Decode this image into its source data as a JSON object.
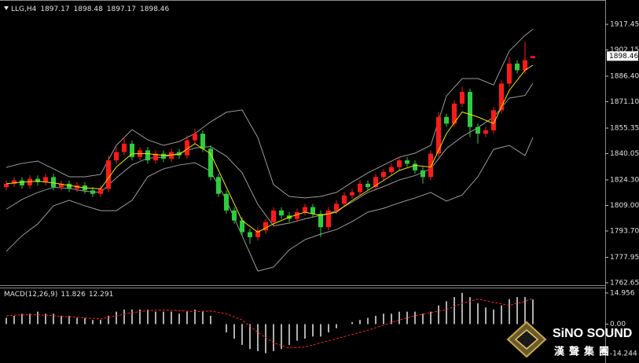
{
  "chart_data": [
    {
      "type": "candlestick",
      "symbol": "LLG,H4",
      "open": [
        1820,
        1822,
        1824,
        1821,
        1825,
        1823,
        1826,
        1820,
        1822,
        1819,
        1821,
        1818,
        1816,
        1819,
        1836,
        1841,
        1846,
        1838,
        1842,
        1836,
        1840,
        1837,
        1841,
        1839,
        1848,
        1852,
        1843,
        1826,
        1816,
        1806,
        1800,
        1793,
        1790,
        1794,
        1799,
        1806,
        1803,
        1801,
        1805,
        1808,
        1804,
        1796,
        1806,
        1810,
        1815,
        1817,
        1822,
        1820,
        1826,
        1829,
        1832,
        1836,
        1834,
        1830,
        1826,
        1840,
        1862,
        1858,
        1870,
        1877,
        1856,
        1852,
        1854,
        1866,
        1882,
        1894,
        1890,
        1897.17
      ],
      "high": [
        1824,
        1826,
        1826,
        1827,
        1827,
        1828,
        1828,
        1824,
        1824,
        1823,
        1823,
        1820,
        1821,
        1839,
        1844,
        1849,
        1848,
        1844,
        1844,
        1842,
        1842,
        1843,
        1843,
        1851,
        1855,
        1854,
        1845,
        1828,
        1818,
        1808,
        1802,
        1795,
        1796,
        1801,
        1808,
        1808,
        1805,
        1807,
        1810,
        1810,
        1806,
        1808,
        1812,
        1817,
        1819,
        1824,
        1824,
        1828,
        1831,
        1834,
        1838,
        1838,
        1836,
        1832,
        1842,
        1865,
        1864,
        1872,
        1880,
        1879,
        1858,
        1856,
        1868,
        1884,
        1898,
        1896,
        1907,
        1898.48
      ],
      "low": [
        1818,
        1820,
        1819,
        1819,
        1821,
        1821,
        1818,
        1818,
        1817,
        1817,
        1816,
        1814,
        1814,
        1817,
        1834,
        1839,
        1836,
        1836,
        1834,
        1834,
        1835,
        1835,
        1837,
        1837,
        1846,
        1841,
        1824,
        1814,
        1804,
        1798,
        1791,
        1786,
        1788,
        1792,
        1797,
        1801,
        1799,
        1799,
        1803,
        1802,
        1790,
        1794,
        1804,
        1808,
        1813,
        1815,
        1818,
        1818,
        1824,
        1827,
        1830,
        1832,
        1828,
        1822,
        1824,
        1838,
        1856,
        1856,
        1868,
        1850,
        1846,
        1850,
        1852,
        1864,
        1880,
        1888,
        1888,
        1897.17
      ],
      "close": [
        1822,
        1824,
        1821,
        1825,
        1823,
        1826,
        1820,
        1822,
        1819,
        1821,
        1818,
        1816,
        1819,
        1836,
        1841,
        1846,
        1838,
        1842,
        1836,
        1840,
        1837,
        1841,
        1839,
        1848,
        1852,
        1843,
        1826,
        1816,
        1806,
        1800,
        1793,
        1790,
        1794,
        1799,
        1806,
        1803,
        1801,
        1805,
        1808,
        1804,
        1796,
        1806,
        1810,
        1815,
        1817,
        1822,
        1820,
        1826,
        1829,
        1832,
        1836,
        1834,
        1830,
        1826,
        1840,
        1862,
        1858,
        1870,
        1877,
        1856,
        1852,
        1854,
        1866,
        1882,
        1894,
        1890,
        1896,
        1898.46
      ],
      "up_color": "#ff1a1a",
      "down_color": "#2ecc40",
      "bands": {
        "color": "#9a9a9a",
        "x": [
          0,
          2,
          4,
          6,
          8,
          10,
          12,
          14,
          16,
          18,
          20,
          22,
          24,
          26,
          28,
          30,
          32,
          34,
          36,
          38,
          40,
          42,
          44,
          46,
          48,
          50,
          52,
          54,
          56,
          58,
          60,
          62,
          64,
          66,
          67
        ],
        "upper": [
          1831.8,
          1834.2,
          1835.6,
          1830.9,
          1826.2,
          1826.2,
          1827.6,
          1845.0,
          1854.4,
          1848.3,
          1845.0,
          1847.3,
          1852.1,
          1859.1,
          1864.8,
          1866.2,
          1849.7,
          1821.5,
          1814.4,
          1813.5,
          1814.4,
          1816.8,
          1822.9,
          1828.5,
          1833.2,
          1837.9,
          1840.3,
          1845.0,
          1874.6,
          1885.0,
          1885.0,
          1881.2,
          1901.5,
          1910.9,
          1914.6
        ],
        "middle": [
          1806.7,
          1812.6,
          1816.8,
          1819.9,
          1819.2,
          1817.5,
          1816.8,
          1825.5,
          1833.3,
          1837.3,
          1838.0,
          1840.3,
          1843.4,
          1844.3,
          1838.5,
          1828.6,
          1809.7,
          1796.8,
          1798.4,
          1801.0,
          1803.1,
          1805.7,
          1811.1,
          1816.8,
          1820.3,
          1824.3,
          1826.9,
          1830.9,
          1843.1,
          1850.2,
          1855.6,
          1861.9,
          1873.3,
          1874.9,
          1882.2
        ],
        "lower": [
          1781.5,
          1790.9,
          1797.9,
          1808.8,
          1812.1,
          1808.8,
          1805.9,
          1805.9,
          1812.1,
          1826.2,
          1830.9,
          1833.2,
          1834.6,
          1829.5,
          1812.1,
          1790.9,
          1769.7,
          1772.1,
          1782.4,
          1788.5,
          1791.8,
          1794.6,
          1799.3,
          1805.0,
          1807.3,
          1810.6,
          1813.5,
          1816.8,
          1811.6,
          1815.3,
          1826.2,
          1842.6,
          1845.0,
          1838.9,
          1849.7
        ]
      },
      "ma": {
        "color": "#f2e600",
        "x": [
          0,
          2,
          4,
          6,
          8,
          10,
          12,
          14,
          16,
          18,
          20,
          22,
          24,
          26,
          28,
          30,
          32,
          34,
          36,
          38,
          40,
          42,
          44,
          46,
          48,
          50,
          52,
          54,
          56,
          58,
          60,
          62,
          64,
          66,
          67
        ],
        "values": [
          1822,
          1823,
          1823.5,
          1822.5,
          1821,
          1819.5,
          1819,
          1832,
          1840,
          1840,
          1839,
          1839.5,
          1846,
          1840,
          1820,
          1800,
          1793,
          1798,
          1802,
          1805,
          1803,
          1805,
          1812,
          1818,
          1824,
          1830,
          1833,
          1832,
          1852,
          1865,
          1862,
          1858,
          1878,
          1890,
          1893
        ]
      },
      "ylim": [
        1761.7,
        1929.7
      ],
      "yticks": [
        1917.45,
        1902.15,
        {
          "value": 1886.4,
          "label": "1886.40"
        },
        {
          "value": 1871.1,
          "label": "1871.10"
        },
        1855.35,
        1840.05,
        {
          "value": 1824.3,
          "label": "1824.30"
        },
        {
          "value": 1809,
          "label": "1809.00"
        },
        {
          "value": 1793.7,
          "label": "1793.70"
        },
        1777.95,
        1762.65
      ]
    },
    {
      "type": "macd",
      "name": "MACD(12,26,9)",
      "color": "#e8e8e8",
      "values": [
        3,
        4,
        5,
        5,
        6,
        5,
        5,
        4,
        4,
        3,
        3,
        2,
        2,
        4,
        6,
        7,
        7,
        7,
        7,
        6,
        6,
        6,
        5,
        6,
        7,
        6,
        4,
        0,
        -4,
        -7,
        -10,
        -12,
        -13,
        -14,
        -13,
        -12,
        -10,
        -8,
        -7,
        -6,
        -6,
        -4,
        -2,
        0,
        1,
        2,
        3,
        4,
        5,
        5,
        6,
        6,
        6,
        5,
        6,
        9,
        11,
        13,
        15,
        13,
        10,
        8,
        7,
        9,
        12,
        13,
        13,
        11.826
      ],
      "signal": {
        "color": "#ff2020",
        "x": [
          0,
          2,
          4,
          6,
          8,
          10,
          12,
          14,
          16,
          18,
          20,
          22,
          24,
          26,
          28,
          30,
          32,
          34,
          36,
          38,
          40,
          42,
          44,
          46,
          48,
          50,
          52,
          54,
          56,
          58,
          60,
          62,
          64,
          66,
          67
        ],
        "values": [
          4,
          4.5,
          4.5,
          4,
          3.5,
          3,
          2.5,
          4,
          5.5,
          6.5,
          6.8,
          6.5,
          6,
          6.3,
          5,
          2,
          -4,
          -9,
          -11.5,
          -11,
          -9,
          -7,
          -5,
          -3,
          -0.5,
          2,
          4,
          5.5,
          7,
          10,
          12,
          10.5,
          9,
          11,
          12.291
        ]
      },
      "ylim": [
        -17.2,
        17.2
      ],
      "yticks": [
        14.956,
        {
          "value": 0,
          "label": "0.00"
        },
        -14.244
      ]
    }
  ],
  "watermark": {
    "title": "SiNO SOUND",
    "subtitle": "漢聲集團"
  }
}
